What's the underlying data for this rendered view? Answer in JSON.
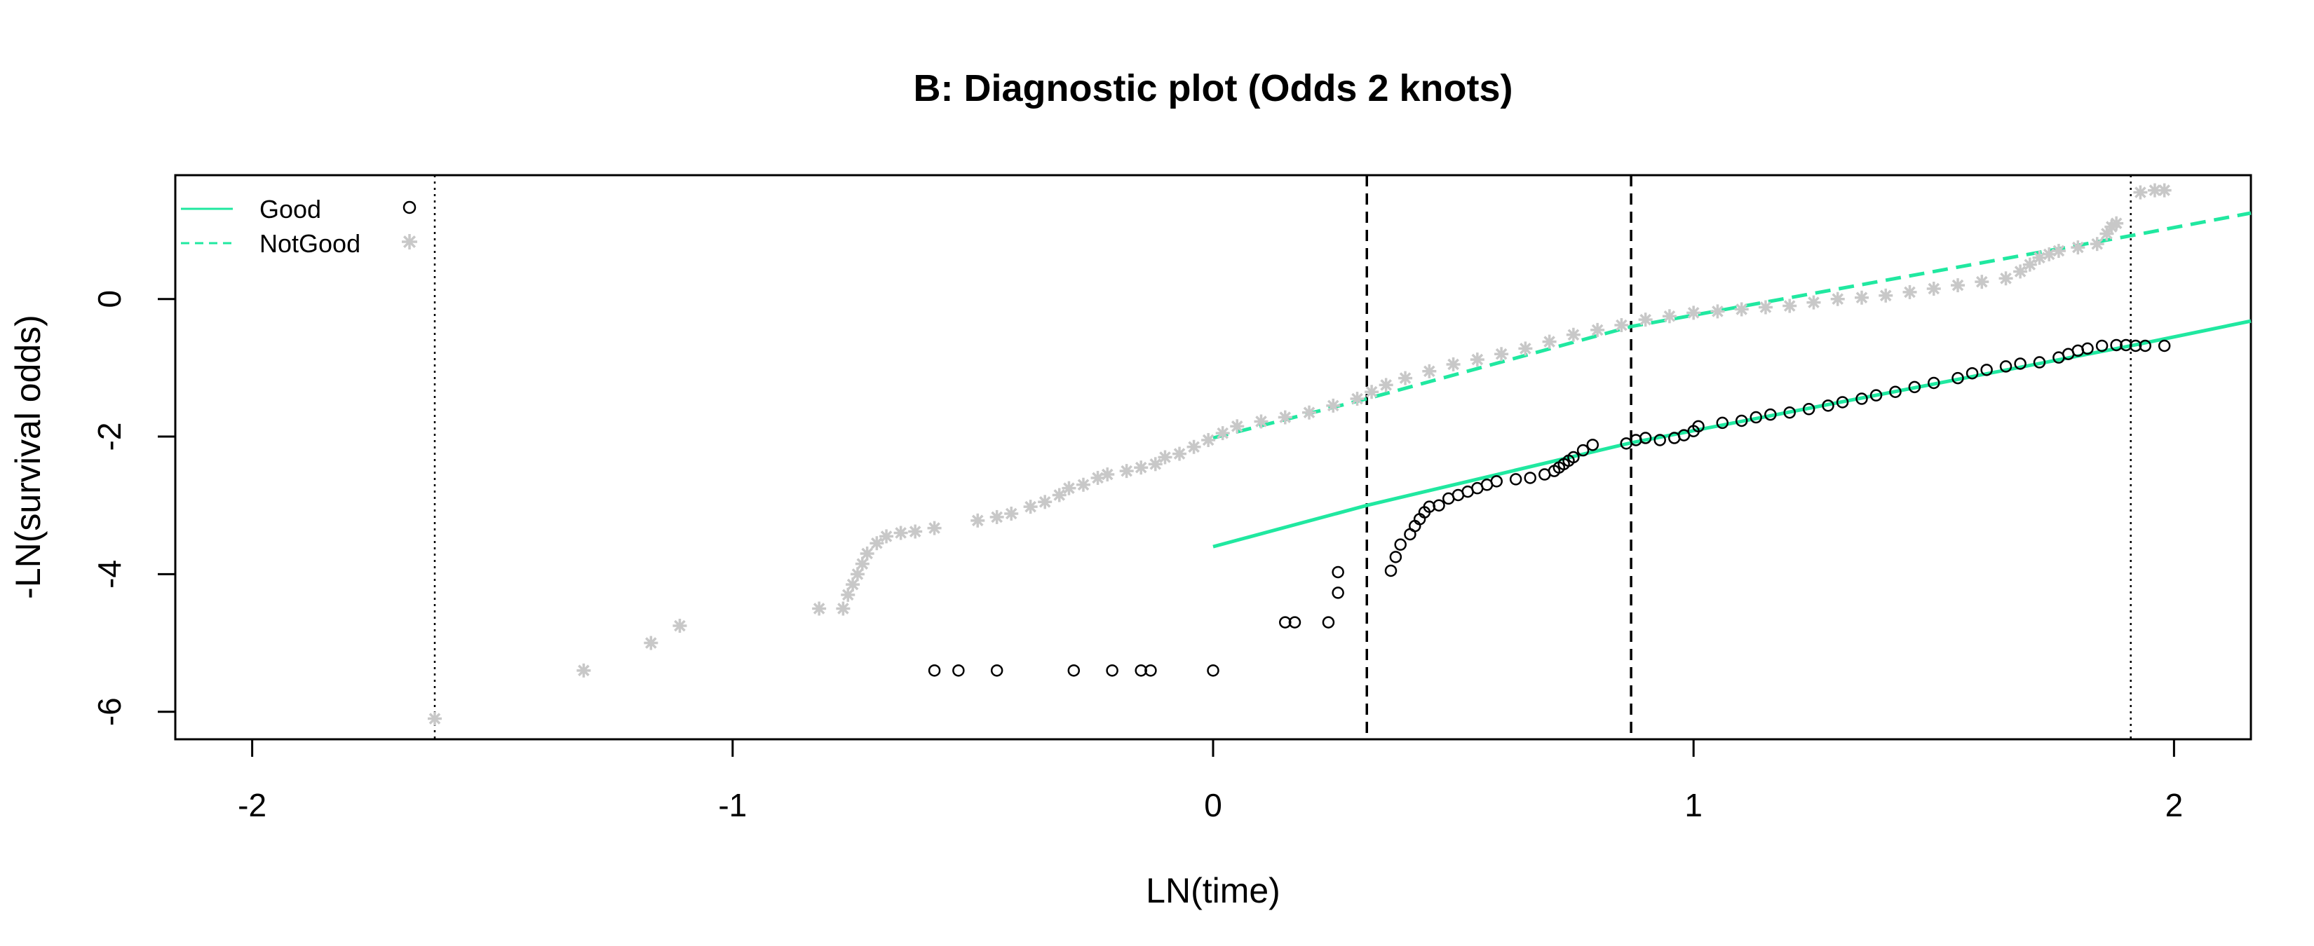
{
  "chart_data": {
    "type": "scatter",
    "title": "B: Diagnostic plot (Odds 2 knots)",
    "xlabel": "LN(time)",
    "ylabel": "-LN(survival odds)",
    "xlim": [
      -2.16,
      2.16
    ],
    "ylim": [
      -6.4,
      1.8
    ],
    "x_ticks": [
      {
        "value": -2,
        "label": "-2"
      },
      {
        "value": -1,
        "label": "-1"
      },
      {
        "value": 0,
        "label": "0"
      },
      {
        "value": 1,
        "label": "1"
      },
      {
        "value": 2,
        "label": "2"
      }
    ],
    "y_ticks": [
      {
        "value": -6,
        "label": "-6"
      },
      {
        "value": -4,
        "label": "-4"
      },
      {
        "value": -2,
        "label": "-2"
      },
      {
        "value": 0,
        "label": "0"
      }
    ],
    "grid": false,
    "legend": {
      "position": "top-left",
      "entries": [
        {
          "label": "Good",
          "line": "solid",
          "marker": "circle"
        },
        {
          "label": "NotGood",
          "line": "dashed",
          "marker": "asterisk"
        }
      ]
    },
    "reference_lines": [
      {
        "x": -1.62,
        "style": "dotted"
      },
      {
        "x": 0.32,
        "style": "dashed"
      },
      {
        "x": 0.87,
        "style": "dashed"
      },
      {
        "x": 1.91,
        "style": "dotted"
      }
    ],
    "series": [
      {
        "name": "Good",
        "kind": "points",
        "marker": "circle",
        "color": "#000000",
        "points": [
          [
            0.0,
            -5.4
          ],
          [
            -0.13,
            -5.4
          ],
          [
            -0.15,
            -5.4
          ],
          [
            -0.21,
            -5.4
          ],
          [
            -0.29,
            -5.4
          ],
          [
            -0.45,
            -5.4
          ],
          [
            -0.53,
            -5.4
          ],
          [
            -0.58,
            -5.4
          ],
          [
            0.15,
            -4.7
          ],
          [
            0.17,
            -4.7
          ],
          [
            0.24,
            -4.7
          ],
          [
            0.26,
            -4.27
          ],
          [
            0.26,
            -3.97
          ],
          [
            0.37,
            -3.95
          ],
          [
            0.38,
            -3.75
          ],
          [
            0.39,
            -3.57
          ],
          [
            0.41,
            -3.42
          ],
          [
            0.42,
            -3.3
          ],
          [
            0.43,
            -3.2
          ],
          [
            0.44,
            -3.1
          ],
          [
            0.45,
            -3.02
          ],
          [
            0.47,
            -3.0
          ],
          [
            0.49,
            -2.9
          ],
          [
            0.51,
            -2.85
          ],
          [
            0.53,
            -2.8
          ],
          [
            0.55,
            -2.75
          ],
          [
            0.57,
            -2.7
          ],
          [
            0.59,
            -2.65
          ],
          [
            0.63,
            -2.62
          ],
          [
            0.66,
            -2.6
          ],
          [
            0.69,
            -2.55
          ],
          [
            0.71,
            -2.5
          ],
          [
            0.72,
            -2.45
          ],
          [
            0.73,
            -2.4
          ],
          [
            0.74,
            -2.35
          ],
          [
            0.75,
            -2.3
          ],
          [
            0.77,
            -2.2
          ],
          [
            0.79,
            -2.12
          ],
          [
            0.86,
            -2.1
          ],
          [
            0.88,
            -2.05
          ],
          [
            0.9,
            -2.02
          ],
          [
            0.93,
            -2.05
          ],
          [
            0.96,
            -2.02
          ],
          [
            0.98,
            -1.98
          ],
          [
            1.0,
            -1.92
          ],
          [
            1.01,
            -1.85
          ],
          [
            1.06,
            -1.8
          ],
          [
            1.1,
            -1.77
          ],
          [
            1.13,
            -1.72
          ],
          [
            1.16,
            -1.68
          ],
          [
            1.2,
            -1.65
          ],
          [
            1.24,
            -1.6
          ],
          [
            1.28,
            -1.55
          ],
          [
            1.31,
            -1.5
          ],
          [
            1.35,
            -1.45
          ],
          [
            1.38,
            -1.4
          ],
          [
            1.42,
            -1.35
          ],
          [
            1.46,
            -1.28
          ],
          [
            1.5,
            -1.22
          ],
          [
            1.55,
            -1.15
          ],
          [
            1.58,
            -1.08
          ],
          [
            1.61,
            -1.03
          ],
          [
            1.65,
            -0.98
          ],
          [
            1.68,
            -0.94
          ],
          [
            1.72,
            -0.92
          ],
          [
            1.76,
            -0.85
          ],
          [
            1.78,
            -0.8
          ],
          [
            1.8,
            -0.75
          ],
          [
            1.82,
            -0.72
          ],
          [
            1.85,
            -0.68
          ],
          [
            1.88,
            -0.67
          ],
          [
            1.9,
            -0.67
          ],
          [
            1.92,
            -0.68
          ],
          [
            1.94,
            -0.68
          ],
          [
            1.98,
            -0.68
          ]
        ]
      },
      {
        "name": "NotGood",
        "kind": "points",
        "marker": "asterisk",
        "color": "#c8c8c8",
        "points": [
          [
            -1.62,
            -6.1
          ],
          [
            -1.31,
            -5.4
          ],
          [
            -1.17,
            -5.0
          ],
          [
            -1.11,
            -4.75
          ],
          [
            -0.82,
            -4.5
          ],
          [
            -0.77,
            -4.5
          ],
          [
            -0.76,
            -4.3
          ],
          [
            -0.75,
            -4.15
          ],
          [
            -0.74,
            -4.0
          ],
          [
            -0.73,
            -3.85
          ],
          [
            -0.72,
            -3.7
          ],
          [
            -0.7,
            -3.55
          ],
          [
            -0.68,
            -3.45
          ],
          [
            -0.65,
            -3.4
          ],
          [
            -0.62,
            -3.38
          ],
          [
            -0.58,
            -3.33
          ],
          [
            -0.49,
            -3.22
          ],
          [
            -0.45,
            -3.17
          ],
          [
            -0.42,
            -3.12
          ],
          [
            -0.38,
            -3.02
          ],
          [
            -0.35,
            -2.95
          ],
          [
            -0.32,
            -2.85
          ],
          [
            -0.3,
            -2.75
          ],
          [
            -0.27,
            -2.7
          ],
          [
            -0.24,
            -2.6
          ],
          [
            -0.22,
            -2.55
          ],
          [
            -0.18,
            -2.5
          ],
          [
            -0.15,
            -2.45
          ],
          [
            -0.12,
            -2.4
          ],
          [
            -0.1,
            -2.3
          ],
          [
            -0.07,
            -2.25
          ],
          [
            -0.04,
            -2.15
          ],
          [
            -0.01,
            -2.05
          ],
          [
            0.02,
            -1.95
          ],
          [
            0.05,
            -1.85
          ],
          [
            0.1,
            -1.78
          ],
          [
            0.15,
            -1.72
          ],
          [
            0.2,
            -1.65
          ],
          [
            0.25,
            -1.55
          ],
          [
            0.3,
            -1.45
          ],
          [
            0.33,
            -1.35
          ],
          [
            0.36,
            -1.25
          ],
          [
            0.4,
            -1.15
          ],
          [
            0.45,
            -1.05
          ],
          [
            0.5,
            -0.95
          ],
          [
            0.55,
            -0.88
          ],
          [
            0.6,
            -0.8
          ],
          [
            0.65,
            -0.72
          ],
          [
            0.7,
            -0.62
          ],
          [
            0.75,
            -0.52
          ],
          [
            0.8,
            -0.45
          ],
          [
            0.85,
            -0.38
          ],
          [
            0.9,
            -0.3
          ],
          [
            0.95,
            -0.25
          ],
          [
            1.0,
            -0.2
          ],
          [
            1.05,
            -0.18
          ],
          [
            1.1,
            -0.15
          ],
          [
            1.15,
            -0.12
          ],
          [
            1.2,
            -0.1
          ],
          [
            1.25,
            -0.05
          ],
          [
            1.3,
            0.0
          ],
          [
            1.35,
            0.02
          ],
          [
            1.4,
            0.05
          ],
          [
            1.45,
            0.1
          ],
          [
            1.5,
            0.15
          ],
          [
            1.55,
            0.2
          ],
          [
            1.6,
            0.25
          ],
          [
            1.65,
            0.3
          ],
          [
            1.68,
            0.4
          ],
          [
            1.7,
            0.5
          ],
          [
            1.72,
            0.6
          ],
          [
            1.74,
            0.65
          ],
          [
            1.76,
            0.7
          ],
          [
            1.8,
            0.75
          ],
          [
            1.84,
            0.8
          ],
          [
            1.86,
            0.95
          ],
          [
            1.87,
            1.05
          ],
          [
            1.88,
            1.1
          ],
          [
            1.93,
            1.55
          ],
          [
            1.96,
            1.58
          ],
          [
            1.98,
            1.58
          ]
        ]
      },
      {
        "name": "Good",
        "kind": "line",
        "style": "solid",
        "color": "#20e8a0",
        "points": [
          [
            0.0,
            -3.6
          ],
          [
            0.32,
            -3.0
          ],
          [
            0.87,
            -2.09
          ],
          [
            1.91,
            -0.68
          ],
          [
            2.16,
            -0.32
          ]
        ]
      },
      {
        "name": "NotGood",
        "kind": "line",
        "style": "dashed",
        "color": "#20e8a0",
        "points": [
          [
            0.0,
            -2.02
          ],
          [
            0.32,
            -1.45
          ],
          [
            0.87,
            -0.4
          ],
          [
            1.91,
            0.92
          ],
          [
            2.16,
            1.25
          ]
        ]
      }
    ]
  }
}
